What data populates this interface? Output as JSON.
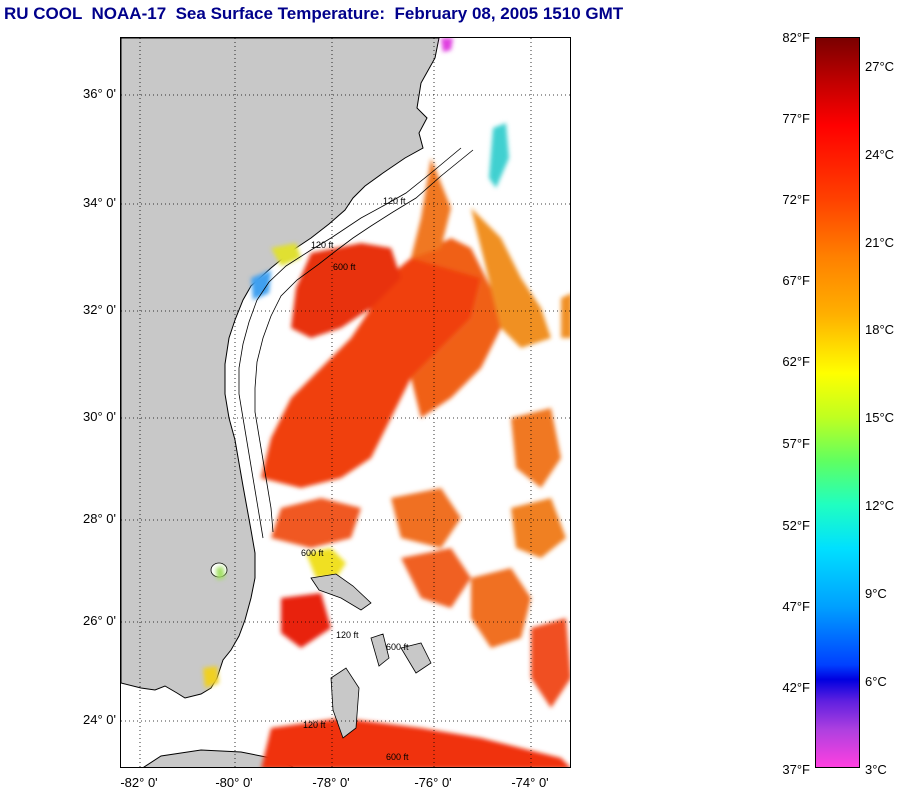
{
  "title": "RU COOL  NOAA-17  Sea Surface Temperature:  February 08, 2005 1510 GMT",
  "map": {
    "lat_labels": [
      "36° 0'",
      "34° 0'",
      "32° 0'",
      "30° 0'",
      "28° 0'",
      "26° 0'",
      "24° 0'"
    ],
    "lon_labels": [
      "-82° 0'",
      "-80° 0'",
      "-78° 0'",
      "-76° 0'",
      "-74° 0'"
    ],
    "contours": [
      "120 ft",
      "600 ft"
    ],
    "colors": {
      "land": "#c8c8c8",
      "ocean_nodata": "#ffffff",
      "coast": "#000000"
    }
  },
  "colorbar": {
    "fahrenheit": [
      "82°F",
      "77°F",
      "72°F",
      "67°F",
      "62°F",
      "57°F",
      "52°F",
      "47°F",
      "42°F",
      "37°F"
    ],
    "celsius": [
      "27°C",
      "24°C",
      "21°C",
      "18°C",
      "15°C",
      "12°C",
      "9°C",
      "6°C",
      "3°C"
    ]
  }
}
